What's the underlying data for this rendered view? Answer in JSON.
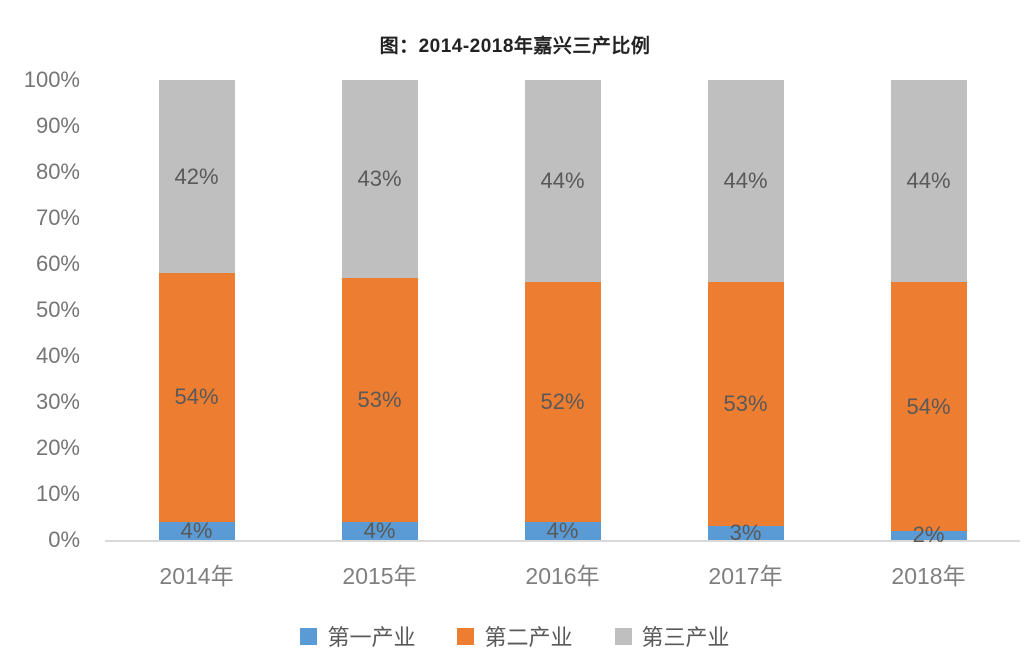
{
  "title": "图：2014-2018年嘉兴三产比例",
  "chart_data": {
    "type": "bar",
    "stacked": true,
    "title": "图：2014-2018年嘉兴三产比例",
    "categories": [
      "2014年",
      "2015年",
      "2016年",
      "2017年",
      "2018年"
    ],
    "series": [
      {
        "name": "第一产业",
        "color": "#5B9BD5",
        "values": [
          4,
          4,
          4,
          3,
          2
        ],
        "labels": [
          "4%",
          "4%",
          "4%",
          "3%",
          "2%"
        ]
      },
      {
        "name": "第二产业",
        "color": "#ED7D31",
        "values": [
          54,
          53,
          52,
          53,
          54
        ],
        "labels": [
          "54%",
          "53%",
          "52%",
          "53%",
          "54%"
        ]
      },
      {
        "name": "第三产业",
        "color": "#BFBFBF",
        "values": [
          42,
          43,
          44,
          44,
          44
        ],
        "labels": [
          "42%",
          "43%",
          "44%",
          "44%",
          "44%"
        ]
      }
    ],
    "y_ticks": [
      "0%",
      "10%",
      "20%",
      "30%",
      "40%",
      "50%",
      "60%",
      "70%",
      "80%",
      "90%",
      "100%"
    ],
    "ylim": [
      0,
      100
    ],
    "ylabel": "",
    "xlabel": "",
    "grid": false,
    "legend_position": "bottom",
    "data_labels_shown": true
  },
  "colors": {
    "series_blue": "#5B9BD5",
    "series_orange": "#ED7D31",
    "series_gray": "#BFBFBF",
    "axis_line": "#D9D9D9",
    "tick_text": "#757575",
    "category_text": "#7F7F7F",
    "data_label_text": "#595959",
    "title_text": "#222222",
    "background": "#FFFFFF"
  }
}
